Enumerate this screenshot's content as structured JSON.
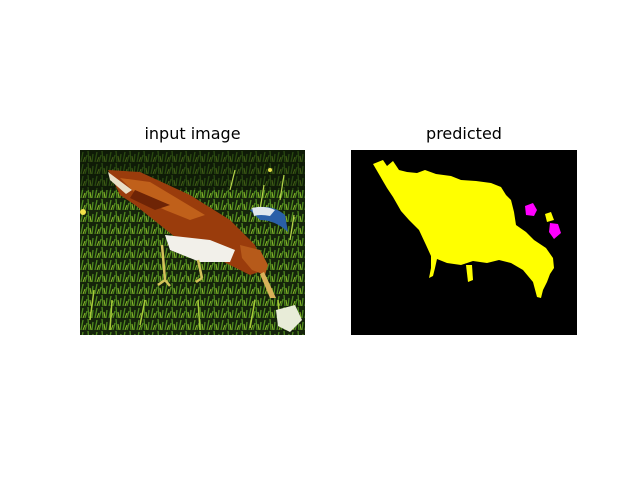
{
  "figure": {
    "left_panel": {
      "title": "input image"
    },
    "right_panel": {
      "title": "predicted"
    }
  },
  "colors": {
    "page_background": "#ffffff",
    "mask_background": "#000000",
    "mask_main_class": "#ffff00",
    "mask_secondary_class": "#ff00ff",
    "photo_grass": "#3f6b1a",
    "photo_bird_body": "#9a3c0c",
    "photo_bird_breast": "#f2f0ea"
  }
}
